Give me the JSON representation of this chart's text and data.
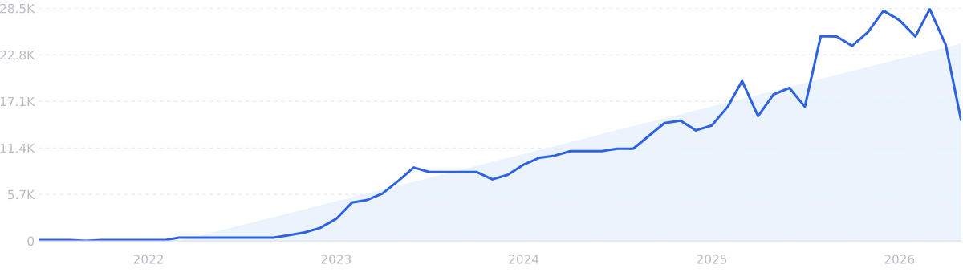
{
  "chart_data": {
    "type": "line",
    "x": [
      "2021-06",
      "2021-07",
      "2021-08",
      "2021-09",
      "2021-10",
      "2021-11",
      "2021-12",
      "2022-01",
      "2022-02",
      "2022-03",
      "2022-04",
      "2022-05",
      "2022-06",
      "2022-07",
      "2022-08",
      "2022-09",
      "2022-10",
      "2022-11",
      "2022-12",
      "2023-01",
      "2023-02",
      "2023-03",
      "2023-04",
      "2023-05",
      "2023-06",
      "2023-07",
      "2023-08",
      "2023-09",
      "2023-10",
      "2023-11",
      "2023-12",
      "2024-01",
      "2024-02",
      "2024-03",
      "2024-04",
      "2024-05",
      "2024-06",
      "2024-07",
      "2024-08",
      "2024-09",
      "2024-10",
      "2024-11",
      "2024-12",
      "2025-01",
      "2025-02",
      "2025-03",
      "2025-04",
      "2025-05",
      "2025-06",
      "2025-07",
      "2025-08",
      "2025-09",
      "2025-10",
      "2025-11",
      "2025-12",
      "2026-01",
      "2026-02",
      "2026-03",
      "2026-04",
      "2026-05"
    ],
    "series": [
      {
        "type": "area",
        "color": "#e6f0fc",
        "x": [
          "2022-03",
          "2026-05"
        ],
        "values": [
          0,
          24200
        ]
      },
      {
        "color": "#2f62de",
        "values": [
          100,
          100,
          100,
          0,
          100,
          100,
          100,
          100,
          100,
          400,
          400,
          400,
          400,
          400,
          400,
          400,
          700,
          1050,
          1600,
          2700,
          4700,
          5000,
          5800,
          7300,
          9000,
          8450,
          8450,
          8450,
          8450,
          7550,
          8100,
          9350,
          10200,
          10450,
          11000,
          11000,
          11000,
          11300,
          11300,
          12900,
          14450,
          14750,
          13550,
          14150,
          16450,
          19600,
          15300,
          17950,
          18750,
          16450,
          25100,
          25050,
          23900,
          25600,
          28200,
          27050,
          25050,
          28400,
          24050,
          14800
        ]
      }
    ],
    "xlim": [
      "2021-06",
      "2026-05"
    ],
    "xticks": [
      {
        "value": "2022-01",
        "label": "2022"
      },
      {
        "value": "2023-01",
        "label": "2023"
      },
      {
        "value": "2024-01",
        "label": "2024"
      },
      {
        "value": "2025-01",
        "label": "2025"
      },
      {
        "value": "2026-01",
        "label": "2026"
      }
    ],
    "ylim": [
      0,
      28500
    ],
    "yticks": [
      0,
      {
        "value": 5700,
        "label": "5.7K"
      },
      {
        "value": 11400,
        "label": "11.4K"
      },
      {
        "value": 17100,
        "label": "17.1K"
      },
      {
        "value": 22800,
        "label": "22.8K"
      },
      {
        "value": 28500,
        "label": "28.5K"
      }
    ],
    "grid": "y",
    "line_style": "solid",
    "marker": "none"
  }
}
